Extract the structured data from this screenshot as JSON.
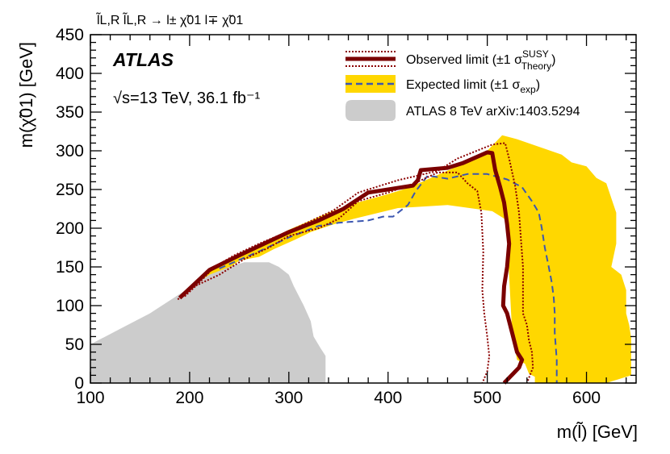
{
  "chart_data": {
    "type": "line",
    "process": "l̃L,R l̃L,R → l± χ̃01 l∓ χ̃01",
    "experiment": "ATLAS",
    "energy_label": "√s=13 TeV, 36.1 fb⁻¹",
    "xlabel": "m(l̃) [GeV]",
    "ylabel": "m(χ̃01) [GeV]",
    "xlim": [
      100,
      650
    ],
    "ylim": [
      0,
      450
    ],
    "xticks": [
      100,
      200,
      300,
      400,
      500,
      600
    ],
    "yticks": [
      0,
      50,
      100,
      150,
      200,
      250,
      300,
      350,
      400,
      450
    ],
    "legend": [
      {
        "label": "Observed limit (±1 σ",
        "sup": "SUSY",
        "sub": "Theory",
        "tail": ")"
      },
      {
        "label": "Expected limit (±1 σ",
        "sub": "exp",
        "tail": ")"
      },
      {
        "label": "ATLAS 8 TeV arXiv:1403.5294"
      }
    ],
    "series": [
      {
        "name": "expected_band",
        "style": "fill",
        "color": "#ffd700",
        "points": [
          [
            190,
            110
          ],
          [
            215,
            140
          ],
          [
            245,
            160
          ],
          [
            270,
            178
          ],
          [
            300,
            198
          ],
          [
            340,
            220
          ],
          [
            360,
            230
          ],
          [
            400,
            244
          ],
          [
            420,
            252
          ],
          [
            470,
            280
          ],
          [
            500,
            300
          ],
          [
            515,
            320
          ],
          [
            530,
            315
          ],
          [
            575,
            295
          ],
          [
            585,
            285
          ],
          [
            600,
            280
          ],
          [
            610,
            265
          ],
          [
            620,
            258
          ],
          [
            630,
            220
          ],
          [
            630,
            180
          ],
          [
            625,
            150
          ],
          [
            635,
            140
          ],
          [
            640,
            120
          ],
          [
            640,
            90
          ],
          [
            643,
            75
          ],
          [
            645,
            58
          ],
          [
            645,
            40
          ],
          [
            645,
            20
          ],
          [
            645,
            10
          ],
          [
            620,
            0
          ],
          [
            548,
            0
          ],
          [
            548,
            8
          ],
          [
            542,
            12
          ],
          [
            538,
            25
          ],
          [
            530,
            30
          ],
          [
            525,
            65
          ],
          [
            520,
            190
          ],
          [
            520,
            210
          ],
          [
            505,
            222
          ],
          [
            460,
            230
          ],
          [
            410,
            226
          ],
          [
            365,
            212
          ],
          [
            345,
            205
          ],
          [
            322,
            195
          ],
          [
            306,
            185
          ],
          [
            285,
            173
          ],
          [
            270,
            163
          ],
          [
            250,
            158
          ],
          [
            230,
            140
          ],
          [
            210,
            125
          ],
          [
            195,
            112
          ]
        ]
      },
      {
        "name": "atlas_8tev",
        "style": "fill",
        "color": "#cccccc",
        "points": [
          [
            100,
            0
          ],
          [
            100,
            50
          ],
          [
            130,
            70
          ],
          [
            160,
            90
          ],
          [
            190,
            115
          ],
          [
            220,
            140
          ],
          [
            240,
            150
          ],
          [
            255,
            156
          ],
          [
            270,
            156
          ],
          [
            280,
            156
          ],
          [
            290,
            150
          ],
          [
            300,
            140
          ],
          [
            305,
            125
          ],
          [
            315,
            100
          ],
          [
            322,
            80
          ],
          [
            325,
            60
          ],
          [
            332,
            45
          ],
          [
            337,
            35
          ],
          [
            337,
            0
          ]
        ]
      },
      {
        "name": "expected",
        "style": "dashed",
        "color": "#3c57b0",
        "points": [
          [
            230,
            148
          ],
          [
            270,
            170
          ],
          [
            300,
            188
          ],
          [
            330,
            203
          ],
          [
            350,
            207
          ],
          [
            360,
            208
          ],
          [
            380,
            210
          ],
          [
            395,
            215
          ],
          [
            405,
            215
          ],
          [
            420,
            230
          ],
          [
            428,
            248
          ],
          [
            440,
            268
          ],
          [
            460,
            264
          ],
          [
            480,
            270
          ],
          [
            500,
            270
          ],
          [
            520,
            263
          ],
          [
            535,
            253
          ],
          [
            545,
            235
          ],
          [
            552,
            220
          ],
          [
            555,
            200
          ],
          [
            558,
            175
          ],
          [
            562,
            150
          ],
          [
            565,
            130
          ],
          [
            567,
            110
          ],
          [
            568,
            90
          ],
          [
            568,
            65
          ],
          [
            570,
            30
          ],
          [
            570,
            0
          ]
        ]
      },
      {
        "name": "observed",
        "style": "thick",
        "color": "#7a0000",
        "points": [
          [
            190,
            110
          ],
          [
            205,
            128
          ],
          [
            220,
            146
          ],
          [
            250,
            165
          ],
          [
            275,
            180
          ],
          [
            300,
            195
          ],
          [
            330,
            210
          ],
          [
            355,
            225
          ],
          [
            380,
            246
          ],
          [
            425,
            255
          ],
          [
            430,
            262
          ],
          [
            433,
            275
          ],
          [
            460,
            278
          ],
          [
            475,
            284
          ],
          [
            500,
            298
          ],
          [
            505,
            297
          ],
          [
            508,
            275
          ],
          [
            513,
            253
          ],
          [
            517,
            233
          ],
          [
            520,
            205
          ],
          [
            522,
            180
          ],
          [
            520,
            150
          ],
          [
            517,
            125
          ],
          [
            516,
            100
          ],
          [
            520,
            90
          ],
          [
            525,
            65
          ],
          [
            530,
            40
          ],
          [
            535,
            30
          ],
          [
            532,
            20
          ],
          [
            517,
            0
          ]
        ]
      },
      {
        "name": "observed_plus",
        "style": "dotted",
        "color": "#8b0000",
        "points": [
          [
            195,
            112
          ],
          [
            210,
            130
          ],
          [
            225,
            150
          ],
          [
            245,
            165
          ],
          [
            270,
            180
          ],
          [
            300,
            196
          ],
          [
            320,
            208
          ],
          [
            345,
            223
          ],
          [
            370,
            246
          ],
          [
            410,
            262
          ],
          [
            430,
            268
          ],
          [
            450,
            274
          ],
          [
            470,
            290
          ],
          [
            505,
            308
          ],
          [
            518,
            310
          ],
          [
            522,
            290
          ],
          [
            528,
            255
          ],
          [
            532,
            220
          ],
          [
            534,
            185
          ],
          [
            536,
            150
          ],
          [
            536,
            120
          ],
          [
            536,
            90
          ],
          [
            540,
            75
          ],
          [
            542,
            55
          ],
          [
            545,
            40
          ],
          [
            546,
            20
          ],
          [
            540,
            0
          ]
        ]
      },
      {
        "name": "observed_minus",
        "style": "dotted",
        "color": "#8b0000",
        "points": [
          [
            188,
            108
          ],
          [
            205,
            125
          ],
          [
            230,
            140
          ],
          [
            255,
            160
          ],
          [
            280,
            175
          ],
          [
            300,
            190
          ],
          [
            330,
            200
          ],
          [
            350,
            212
          ],
          [
            370,
            235
          ],
          [
            400,
            246
          ],
          [
            420,
            255
          ],
          [
            430,
            260
          ],
          [
            450,
            272
          ],
          [
            470,
            272
          ],
          [
            480,
            258
          ],
          [
            490,
            248
          ],
          [
            494,
            220
          ],
          [
            496,
            170
          ],
          [
            495,
            120
          ],
          [
            497,
            90
          ],
          [
            500,
            60
          ],
          [
            502,
            35
          ],
          [
            500,
            15
          ],
          [
            495,
            0
          ]
        ]
      }
    ]
  }
}
